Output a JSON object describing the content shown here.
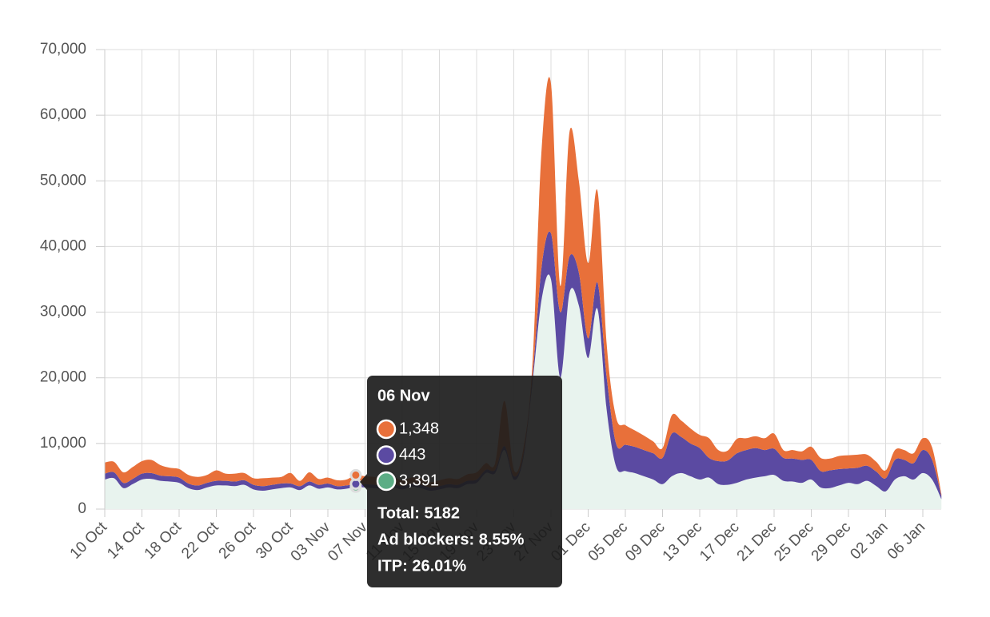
{
  "chart_data": {
    "type": "stacked-area",
    "categories": [
      "10 Oct",
      null,
      null,
      null,
      "14 Oct",
      null,
      null,
      null,
      "18 Oct",
      null,
      null,
      null,
      "22 Oct",
      null,
      null,
      null,
      "26 Oct",
      null,
      null,
      null,
      "30 Oct",
      null,
      null,
      null,
      "03 Nov",
      null,
      null,
      null,
      "07 Nov",
      null,
      null,
      null,
      "11 Nov",
      null,
      null,
      null,
      "15 Nov",
      null,
      null,
      null,
      "19 Nov",
      null,
      null,
      null,
      "23 Nov",
      null,
      null,
      null,
      "27 Nov",
      null,
      null,
      null,
      "01 Dec",
      null,
      null,
      null,
      "05 Dec",
      null,
      null,
      null,
      "09 Dec",
      null,
      null,
      null,
      "13 Dec",
      null,
      null,
      null,
      "17 Dec",
      null,
      null,
      null,
      "21 Dec",
      null,
      null,
      null,
      "25 Dec",
      null,
      null,
      null,
      "29 Dec",
      null,
      null,
      null,
      "02 Jan",
      null,
      null,
      null,
      "06 Jan",
      null,
      null
    ],
    "series": [
      {
        "color": "#5cad85",
        "fill": "#e8f3ee",
        "values": [
          4500,
          4700,
          3200,
          3800,
          4500,
          4600,
          4300,
          4200,
          4000,
          3200,
          2900,
          3300,
          3600,
          3600,
          3500,
          3700,
          3000,
          2800,
          3000,
          3200,
          3300,
          2900,
          3600,
          3100,
          3300,
          3000,
          3100,
          3391,
          3300,
          3200,
          3100,
          3300,
          3000,
          3400,
          3200,
          2800,
          3000,
          3300,
          3200,
          3800,
          4000,
          5500,
          5500,
          9000,
          4500,
          7500,
          19000,
          32000,
          35000,
          20000,
          33000,
          31000,
          23000,
          30500,
          15000,
          6500,
          5800,
          5500,
          5000,
          4500,
          3800,
          5000,
          5500,
          5000,
          4500,
          4800,
          3800,
          3700,
          4000,
          4500,
          4800,
          5000,
          5200,
          4300,
          4200,
          4000,
          4500,
          3300,
          3200,
          3600,
          4000,
          3800,
          4300,
          3500,
          2700,
          4500,
          5000,
          4500,
          5500,
          4500,
          1500
        ]
      },
      {
        "color": "#5b4aa2",
        "fill": "#5b4aa2",
        "values": [
          900,
          900,
          800,
          800,
          900,
          900,
          800,
          800,
          800,
          700,
          700,
          700,
          700,
          700,
          700,
          700,
          700,
          700,
          700,
          700,
          600,
          600,
          600,
          600,
          600,
          500,
          500,
          443,
          500,
          500,
          500,
          500,
          500,
          500,
          500,
          500,
          500,
          500,
          500,
          500,
          500,
          500,
          500,
          600,
          500,
          500,
          1000,
          5000,
          7000,
          10000,
          5500,
          5000,
          3000,
          4000,
          5000,
          3500,
          4000,
          4000,
          4000,
          4000,
          4000,
          6500,
          5500,
          5000,
          4800,
          3000,
          3500,
          3700,
          4500,
          4500,
          4500,
          4000,
          4000,
          3500,
          3500,
          3500,
          3000,
          2500,
          2700,
          2500,
          2200,
          2500,
          2300,
          2200,
          2000,
          3000,
          2500,
          2500,
          3500,
          3000,
          500
        ]
      },
      {
        "color": "#e8703a",
        "fill": "#e8703a",
        "values": [
          1700,
          1600,
          1600,
          1800,
          1900,
          2000,
          1600,
          1300,
          1300,
          1300,
          1300,
          1200,
          1600,
          1100,
          1200,
          1100,
          1000,
          1200,
          1100,
          1000,
          1600,
          800,
          1400,
          900,
          900,
          900,
          900,
          1348,
          1200,
          1200,
          1100,
          1100,
          900,
          900,
          1000,
          800,
          900,
          900,
          900,
          1000,
          1100,
          1000,
          1000,
          6900,
          1000,
          1000,
          2000,
          18000,
          22800,
          4000,
          19000,
          14000,
          11500,
          14000,
          5000,
          4000,
          3000,
          2500,
          2200,
          1800,
          1500,
          2800,
          2500,
          2300,
          2000,
          3000,
          1700,
          1500,
          2200,
          1800,
          1800,
          1800,
          2300,
          1200,
          1300,
          1300,
          2000,
          2000,
          1800,
          2000,
          2000,
          2000,
          1700,
          1500,
          1200,
          1500,
          1500,
          1500,
          1800,
          1900,
          300
        ]
      }
    ],
    "ylim": [
      0,
      70000
    ],
    "yticks": [
      0,
      {
        "value": 10000,
        "label": "10,000"
      },
      {
        "value": 20000,
        "label": "20,000"
      },
      {
        "value": 30000,
        "label": "30,000"
      },
      {
        "value": 40000,
        "label": "40,000"
      },
      {
        "value": 50000,
        "label": "50,000"
      },
      {
        "value": 60000,
        "label": "60,000"
      },
      {
        "value": 70000,
        "label": "70,000"
      }
    ],
    "grid": true,
    "tooltip": {
      "index": 27,
      "title": "06 Nov",
      "values": [
        1348,
        443,
        3391
      ],
      "value_labels": [
        "1,348",
        "443",
        "3,391"
      ],
      "colors": [
        "#e8703a",
        "#5b4aa2",
        "#5cad85"
      ],
      "total": "Total: 5182",
      "ad_blockers": "Ad blockers: 8.55%",
      "itp": "ITP: 26.01%"
    }
  }
}
